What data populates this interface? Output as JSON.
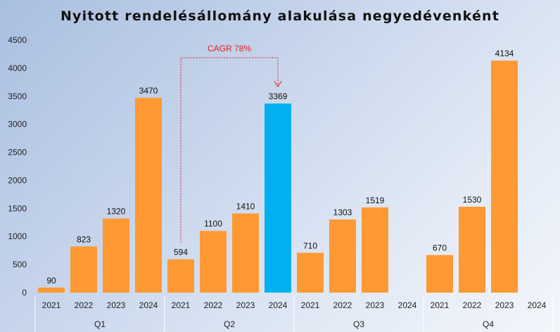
{
  "chart_data": {
    "type": "bar",
    "title": "Nyitott rendelésállomány alakulása negyedévenként",
    "xlabel": "",
    "ylabel": "",
    "ylim": [
      0,
      4500
    ],
    "yticks": [
      0,
      500,
      1000,
      1500,
      2000,
      2500,
      3000,
      3500,
      4000,
      4500
    ],
    "groups": [
      "Q1",
      "Q2",
      "Q3",
      "Q4"
    ],
    "years": [
      "2021",
      "2022",
      "2023",
      "2024"
    ],
    "bars": [
      {
        "group": "Q1",
        "year": "2021",
        "value": 90,
        "label": "90"
      },
      {
        "group": "Q1",
        "year": "2022",
        "value": 823,
        "label": "823"
      },
      {
        "group": "Q1",
        "year": "2023",
        "value": 1320,
        "label": "1320"
      },
      {
        "group": "Q1",
        "year": "2024",
        "value": 3470,
        "label": "3470"
      },
      {
        "group": "Q2",
        "year": "2021",
        "value": 594,
        "label": "594"
      },
      {
        "group": "Q2",
        "year": "2022",
        "value": 1100,
        "label": "1100"
      },
      {
        "group": "Q2",
        "year": "2023",
        "value": 1410,
        "label": "1410"
      },
      {
        "group": "Q2",
        "year": "2024",
        "value": 3369,
        "label": "3369",
        "highlight": true
      },
      {
        "group": "Q3",
        "year": "2021",
        "value": 710,
        "label": "710"
      },
      {
        "group": "Q3",
        "year": "2022",
        "value": 1303,
        "label": "1303"
      },
      {
        "group": "Q3",
        "year": "2023",
        "value": 1519,
        "label": "1519"
      },
      {
        "group": "Q3",
        "year": "2024",
        "value": null,
        "label": ""
      },
      {
        "group": "Q4",
        "year": "2021",
        "value": 670,
        "label": "670"
      },
      {
        "group": "Q4",
        "year": "2022",
        "value": 1530,
        "label": "1530"
      },
      {
        "group": "Q4",
        "year": "2023",
        "value": 4134,
        "label": "4134"
      },
      {
        "group": "Q4",
        "year": "2024",
        "value": null,
        "label": ""
      }
    ],
    "annotation": {
      "text": "CAGR  78%",
      "from": {
        "group": "Q2",
        "year": "2021"
      },
      "to": {
        "group": "Q2",
        "year": "2024"
      }
    },
    "colors": {
      "bar": "#ff9933",
      "highlight": "#00b0f0",
      "annotation": "#e02020",
      "separator": "#ffffff"
    },
    "grid": false,
    "legend": "none"
  }
}
